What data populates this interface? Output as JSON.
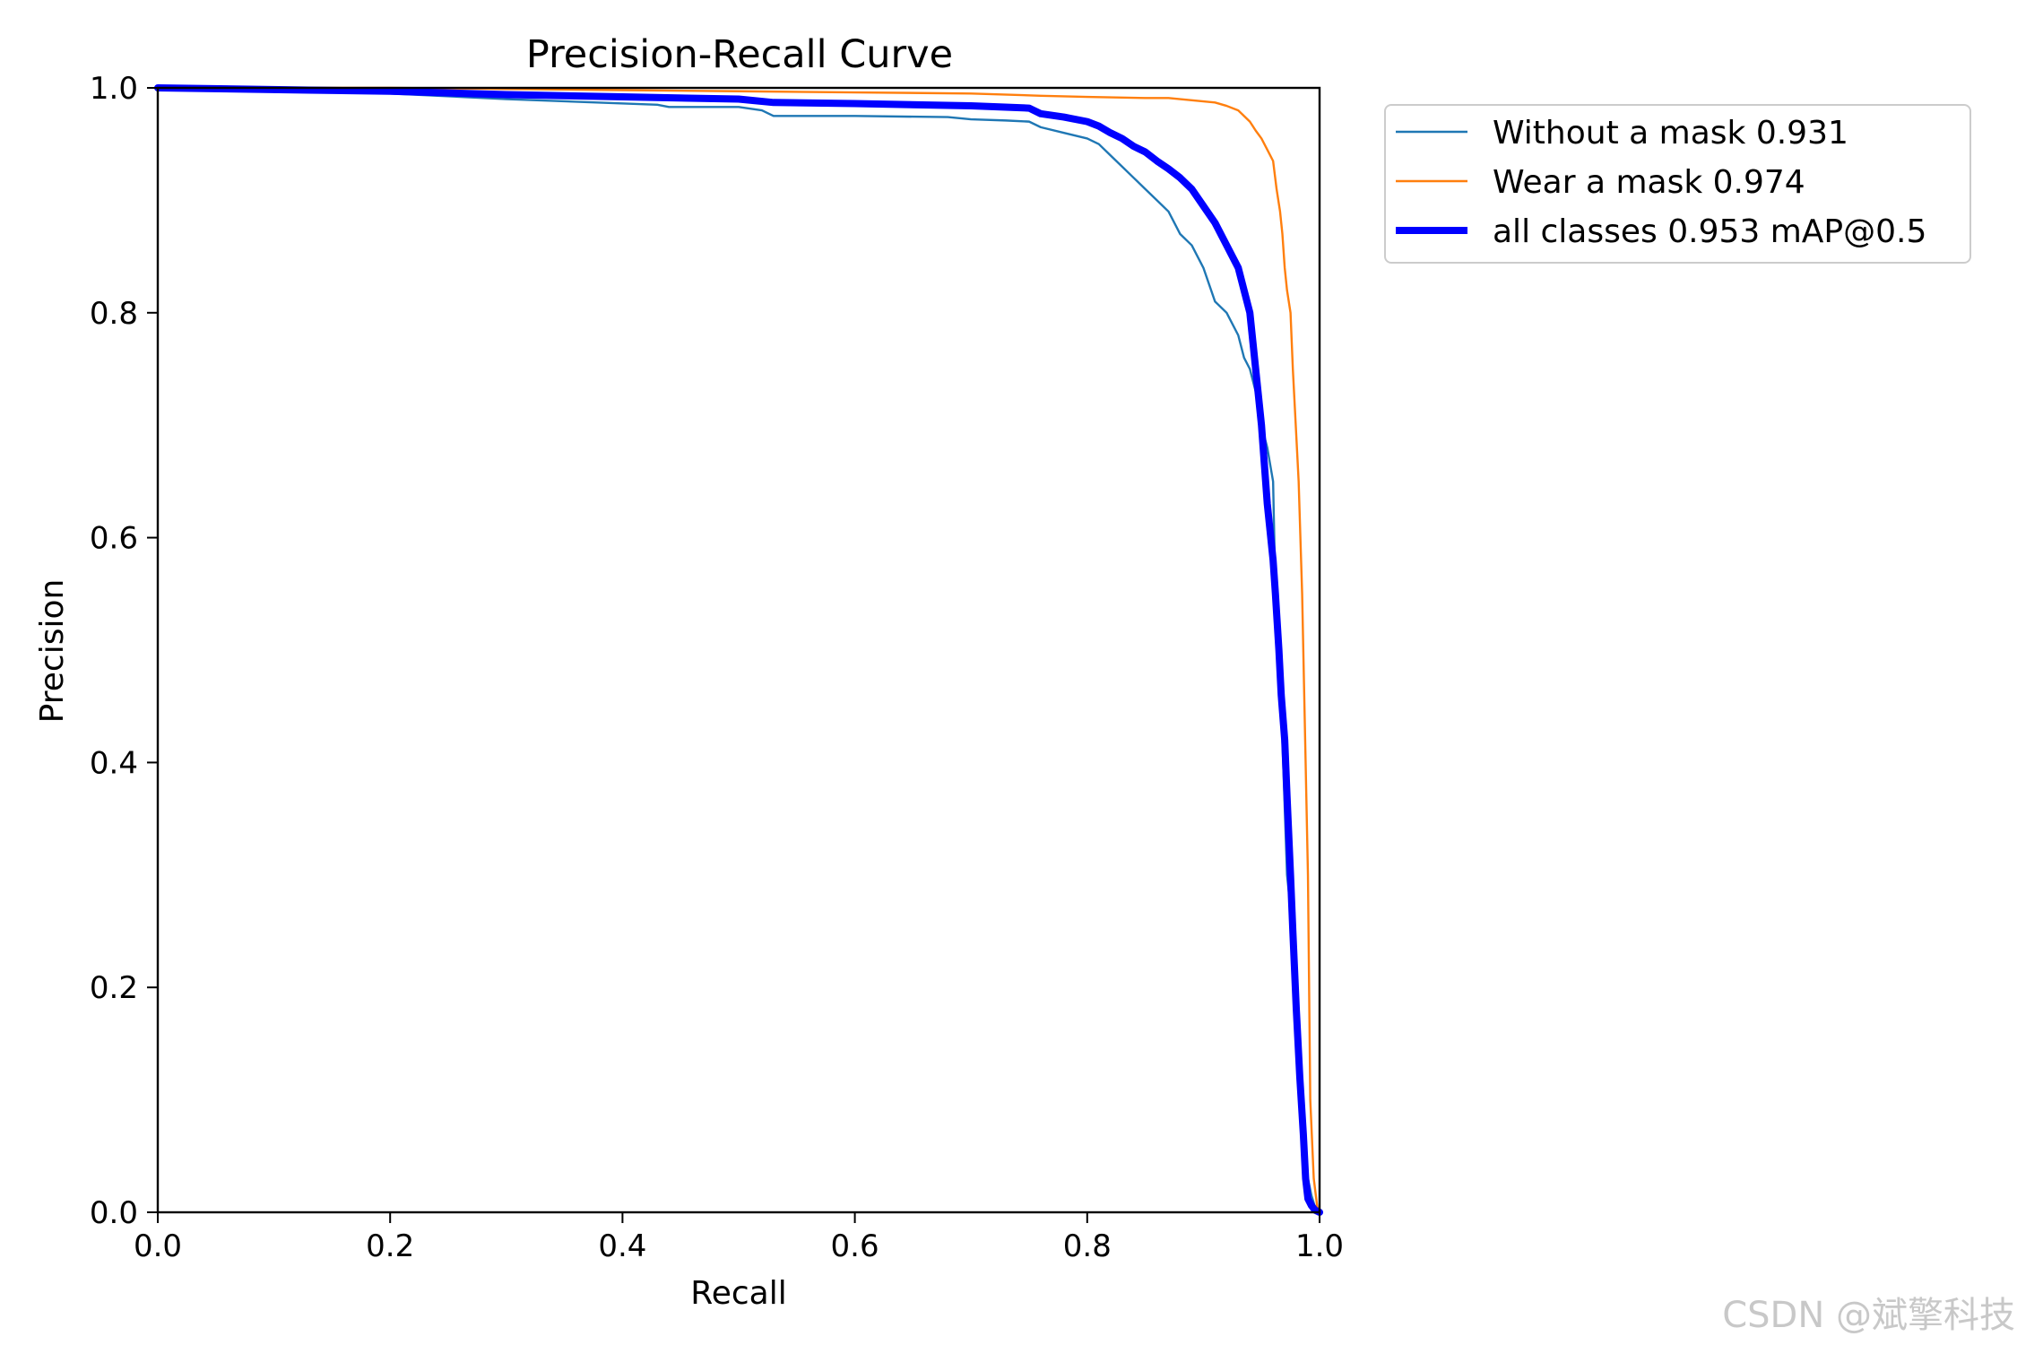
{
  "chart_data": {
    "type": "line",
    "title": "Precision-Recall Curve",
    "xlabel": "Recall",
    "ylabel": "Precision",
    "xlim": [
      0.0,
      1.0
    ],
    "ylim": [
      0.0,
      1.0
    ],
    "xticks": [
      0.0,
      0.2,
      0.4,
      0.6,
      0.8,
      1.0
    ],
    "yticks": [
      0.0,
      0.2,
      0.4,
      0.6,
      0.8,
      1.0
    ],
    "xtick_labels": [
      "0.0",
      "0.2",
      "0.4",
      "0.6",
      "0.8",
      "1.0"
    ],
    "ytick_labels": [
      "0.0",
      "0.2",
      "0.4",
      "0.6",
      "0.8",
      "1.0"
    ],
    "grid": false,
    "legend_position": "outside-upper-right",
    "series": [
      {
        "name": "Without a mask 0.931",
        "color": "#1f77b4",
        "line": "thin",
        "x": [
          0.0,
          0.1,
          0.2,
          0.3,
          0.43,
          0.44,
          0.5,
          0.52,
          0.53,
          0.6,
          0.68,
          0.7,
          0.73,
          0.75,
          0.76,
          0.78,
          0.8,
          0.81,
          0.82,
          0.83,
          0.84,
          0.85,
          0.86,
          0.87,
          0.88,
          0.89,
          0.9,
          0.91,
          0.92,
          0.93,
          0.935,
          0.94,
          0.945,
          0.95,
          0.955,
          0.96,
          0.962,
          0.965,
          0.967,
          0.97,
          0.972,
          0.975,
          0.977,
          0.98,
          0.983,
          0.985,
          0.988,
          0.99,
          0.993,
          0.996,
          1.0
        ],
        "y": [
          1.0,
          1.0,
          0.995,
          0.99,
          0.985,
          0.983,
          0.983,
          0.98,
          0.975,
          0.975,
          0.974,
          0.972,
          0.971,
          0.97,
          0.965,
          0.96,
          0.955,
          0.95,
          0.94,
          0.93,
          0.92,
          0.91,
          0.9,
          0.89,
          0.87,
          0.86,
          0.84,
          0.81,
          0.8,
          0.78,
          0.76,
          0.75,
          0.73,
          0.7,
          0.68,
          0.65,
          0.55,
          0.5,
          0.45,
          0.36,
          0.3,
          0.27,
          0.25,
          0.17,
          0.1,
          0.08,
          0.05,
          0.03,
          0.015,
          0.005,
          0.0
        ]
      },
      {
        "name": "Wear a mask 0.974",
        "color": "#ff7f0e",
        "line": "thin",
        "x": [
          0.0,
          0.2,
          0.4,
          0.5,
          0.6,
          0.7,
          0.76,
          0.8,
          0.85,
          0.87,
          0.88,
          0.89,
          0.9,
          0.91,
          0.92,
          0.93,
          0.935,
          0.94,
          0.945,
          0.95,
          0.955,
          0.96,
          0.963,
          0.966,
          0.968,
          0.97,
          0.972,
          0.975,
          0.977,
          0.98,
          0.982,
          0.985,
          0.988,
          0.99,
          0.992,
          0.995,
          0.998,
          1.0
        ],
        "y": [
          1.0,
          1.0,
          0.998,
          0.997,
          0.996,
          0.995,
          0.993,
          0.992,
          0.991,
          0.991,
          0.99,
          0.989,
          0.988,
          0.987,
          0.984,
          0.98,
          0.975,
          0.97,
          0.962,
          0.955,
          0.945,
          0.935,
          0.91,
          0.89,
          0.87,
          0.84,
          0.82,
          0.8,
          0.75,
          0.69,
          0.65,
          0.55,
          0.4,
          0.3,
          0.1,
          0.03,
          0.005,
          0.0
        ]
      },
      {
        "name": "all classes 0.953 mAP@0.5",
        "color": "#0000ff",
        "line": "thick",
        "x": [
          0.0,
          0.13,
          0.2,
          0.3,
          0.4,
          0.5,
          0.53,
          0.6,
          0.7,
          0.75,
          0.76,
          0.78,
          0.8,
          0.81,
          0.82,
          0.83,
          0.84,
          0.85,
          0.86,
          0.87,
          0.88,
          0.89,
          0.9,
          0.91,
          0.92,
          0.93,
          0.935,
          0.94,
          0.945,
          0.95,
          0.955,
          0.96,
          0.962,
          0.965,
          0.967,
          0.97,
          0.972,
          0.975,
          0.977,
          0.98,
          0.983,
          0.986,
          0.988,
          0.99,
          0.993,
          0.996,
          1.0
        ],
        "y": [
          1.0,
          0.998,
          0.997,
          0.994,
          0.992,
          0.99,
          0.987,
          0.986,
          0.984,
          0.982,
          0.977,
          0.974,
          0.97,
          0.966,
          0.96,
          0.955,
          0.948,
          0.943,
          0.935,
          0.928,
          0.92,
          0.91,
          0.895,
          0.88,
          0.86,
          0.84,
          0.82,
          0.8,
          0.75,
          0.7,
          0.63,
          0.58,
          0.55,
          0.5,
          0.46,
          0.42,
          0.37,
          0.3,
          0.25,
          0.18,
          0.12,
          0.07,
          0.03,
          0.012,
          0.006,
          0.002,
          0.0
        ]
      }
    ]
  },
  "watermark": "CSDN @斌擎科技"
}
